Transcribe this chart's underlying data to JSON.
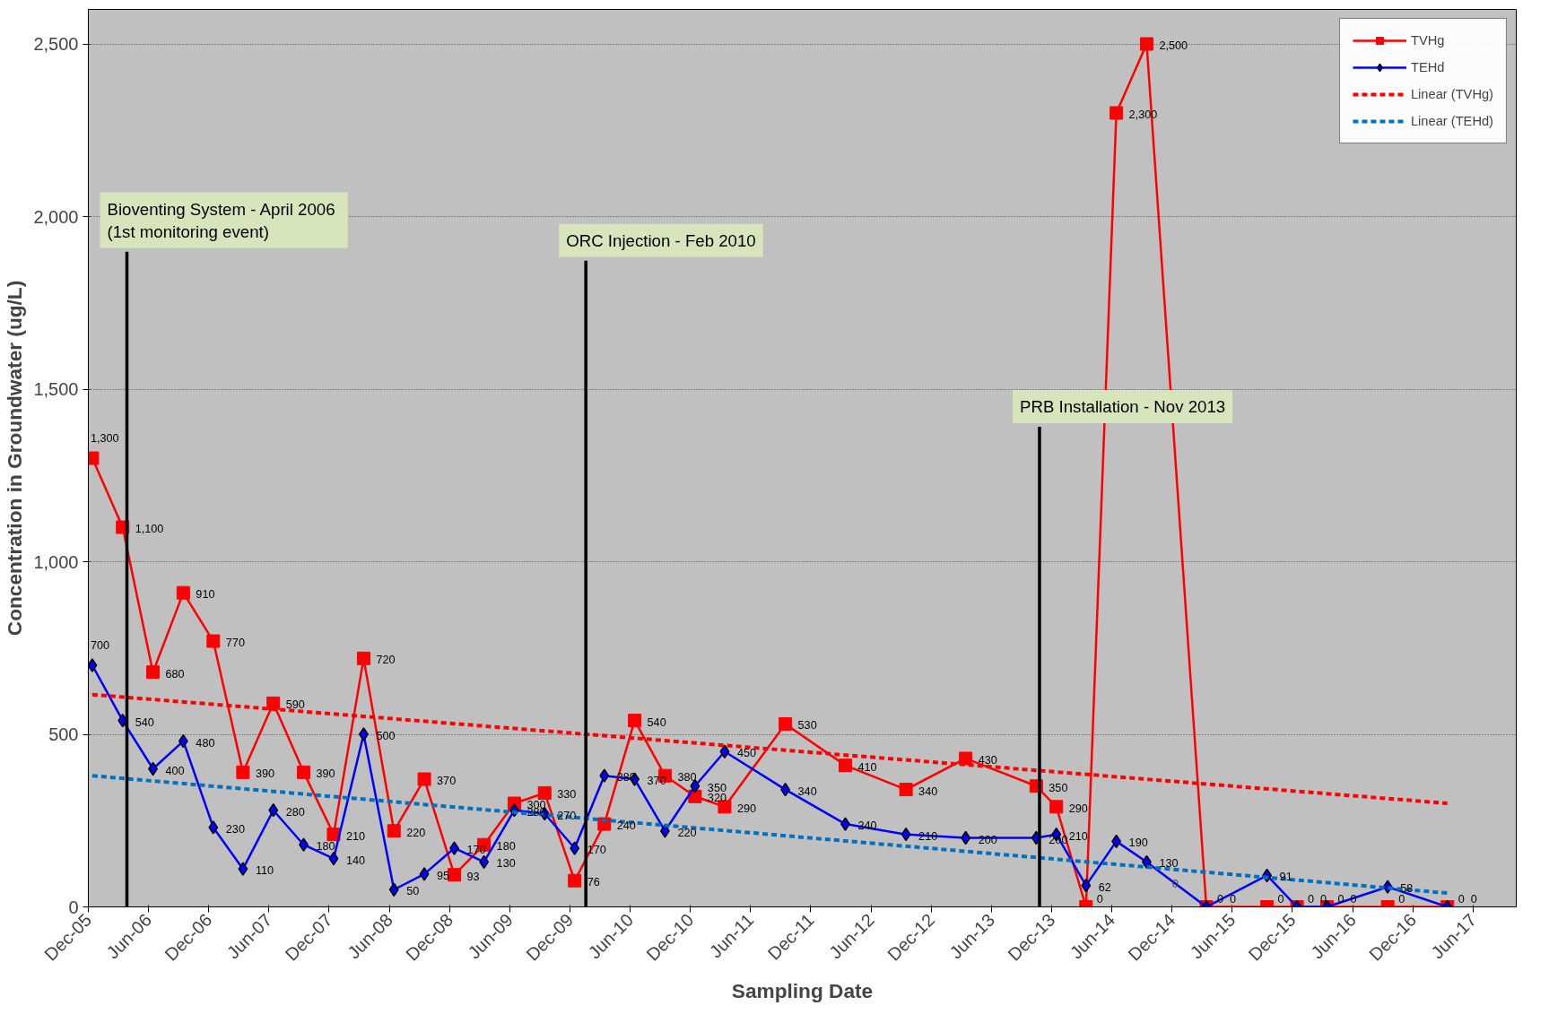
{
  "chart_data": {
    "type": "line",
    "xlabel": "Sampling Date",
    "ylabel": "Concentration in Groundwater (ug/L)",
    "x": [
      "2005-12-13",
      "2006-03-15",
      "2006-06-15",
      "2006-09-15",
      "2006-12-15",
      "2007-03-15",
      "2007-06-15",
      "2007-09-15",
      "2007-12-15",
      "2008-03-15",
      "2008-06-15",
      "2008-09-15",
      "2008-12-15",
      "2009-03-15",
      "2009-06-15",
      "2009-09-15",
      "2009-12-15",
      "2010-03-15",
      "2010-06-15",
      "2010-09-15",
      "2010-12-15",
      "2011-03-15",
      "2011-09-15",
      "2012-03-15",
      "2012-09-15",
      "2013-03-15",
      "2013-10-15",
      "2013-12-15",
      "2014-03-15",
      "2014-06-15",
      "2014-09-15",
      "2015-03-15",
      "2015-09-15",
      "2015-12-15",
      "2016-03-15",
      "2016-09-15",
      "2017-03-15"
    ],
    "series": [
      {
        "name": "TVHg",
        "color": "#ff0000",
        "marker": "square",
        "line_style": "solid",
        "values": [
          1300,
          1100,
          680,
          910,
          770,
          390,
          590,
          390,
          210,
          720,
          220,
          370,
          93,
          180,
          300,
          330,
          76,
          240,
          540,
          380,
          320,
          290,
          530,
          410,
          340,
          430,
          350,
          290,
          0,
          2300,
          2500,
          0,
          0,
          0,
          0,
          0,
          0
        ],
        "value_labels": [
          "1,300",
          "1,100",
          "680",
          "910",
          "770",
          "390",
          "590",
          "390",
          "210",
          "720",
          "220",
          "370",
          "93",
          "180",
          "300",
          "330",
          "76",
          "240",
          "540",
          "380",
          "320",
          "290",
          "530",
          "410",
          "340",
          "430",
          "350",
          "290",
          "0",
          "2,300",
          "2,500",
          "0",
          "0",
          "0",
          "0",
          "0",
          "0"
        ]
      },
      {
        "name": "TEHd",
        "color": "#0000ff",
        "marker": "diamond",
        "line_style": "solid",
        "values": [
          700,
          540,
          400,
          480,
          230,
          110,
          280,
          180,
          140,
          500,
          50,
          95,
          170,
          130,
          280,
          270,
          170,
          380,
          370,
          220,
          350,
          450,
          340,
          240,
          210,
          200,
          200,
          210,
          62,
          190,
          130,
          0,
          91,
          0,
          0,
          58,
          0
        ],
        "value_labels": [
          "700",
          "540",
          "400",
          "480",
          "230",
          "110",
          "280",
          "180",
          "140",
          "500",
          "50",
          "95",
          "170",
          "130",
          "280",
          "270",
          "170",
          "380",
          "370",
          "220",
          "350",
          "450",
          "340",
          "240",
          "210",
          "200",
          "200",
          "210",
          "62",
          "190",
          "130",
          "0",
          "91",
          "0",
          "0",
          "58",
          "0"
        ]
      },
      {
        "name": "Linear (TVHg)",
        "type": "line",
        "color": "#ff0000",
        "marker": "none",
        "line_style": "dashed",
        "x": [
          "2005-12-13",
          "2017-03-15"
        ],
        "values": [
          615,
          300
        ]
      },
      {
        "name": "Linear (TEHd)",
        "type": "line",
        "color": "#0070c0",
        "marker": "none",
        "line_style": "dashed",
        "x": [
          "2005-12-13",
          "2017-03-15"
        ],
        "values": [
          380,
          40
        ]
      }
    ],
    "annotations": [
      "0"
    ],
    "ref_lines": [
      {
        "axis": "x",
        "value": "2006-03-28",
        "label": "Bioventing  System - April 2006\n(1st monitoring event)",
        "color": "#000000"
      },
      {
        "axis": "x",
        "value": "2010-01-18",
        "label": "ORC Injection - Feb 2010",
        "color": "#000000"
      },
      {
        "axis": "x",
        "value": "2013-10-25",
        "label": "PRB Installation - Nov 2013",
        "color": "#000000"
      }
    ],
    "xlim": [
      "2005-12-01",
      "2017-10-10"
    ],
    "xticks": [
      {
        "value": "2005-12-01",
        "label": "Dec-05"
      },
      {
        "value": "2006-06-01",
        "label": "Jun-06"
      },
      {
        "value": "2006-12-01",
        "label": "Dec-06"
      },
      {
        "value": "2007-06-01",
        "label": "Jun-07"
      },
      {
        "value": "2007-12-01",
        "label": "Dec-07"
      },
      {
        "value": "2008-06-01",
        "label": "Jun-08"
      },
      {
        "value": "2008-12-01",
        "label": "Dec-08"
      },
      {
        "value": "2009-06-01",
        "label": "Jun-09"
      },
      {
        "value": "2009-12-01",
        "label": "Dec-09"
      },
      {
        "value": "2010-06-01",
        "label": "Jun-10"
      },
      {
        "value": "2010-12-01",
        "label": "Dec-10"
      },
      {
        "value": "2011-06-01",
        "label": "Jun-11"
      },
      {
        "value": "2011-12-01",
        "label": "Dec-11"
      },
      {
        "value": "2012-06-01",
        "label": "Jun-12"
      },
      {
        "value": "2012-12-01",
        "label": "Dec-12"
      },
      {
        "value": "2013-06-01",
        "label": "Jun-13"
      },
      {
        "value": "2013-12-01",
        "label": "Dec-13"
      },
      {
        "value": "2014-06-01",
        "label": "Jun-14"
      },
      {
        "value": "2014-12-01",
        "label": "Dec-14"
      },
      {
        "value": "2015-06-01",
        "label": "Jun-15"
      },
      {
        "value": "2015-12-01",
        "label": "Dec-15"
      },
      {
        "value": "2016-06-01",
        "label": "Jun-16"
      },
      {
        "value": "2016-12-01",
        "label": "Dec-16"
      },
      {
        "value": "2017-06-01",
        "label": "Jun-17"
      }
    ],
    "ylim": [
      0,
      2600
    ],
    "yticks": [
      0,
      500,
      {
        "value": 1000,
        "label": "1,000"
      },
      {
        "value": 1500,
        "label": "1,500"
      },
      {
        "value": 2000,
        "label": "2,000"
      },
      {
        "value": 2500,
        "label": "2,500"
      }
    ],
    "grid": "y",
    "legend": "top right"
  }
}
